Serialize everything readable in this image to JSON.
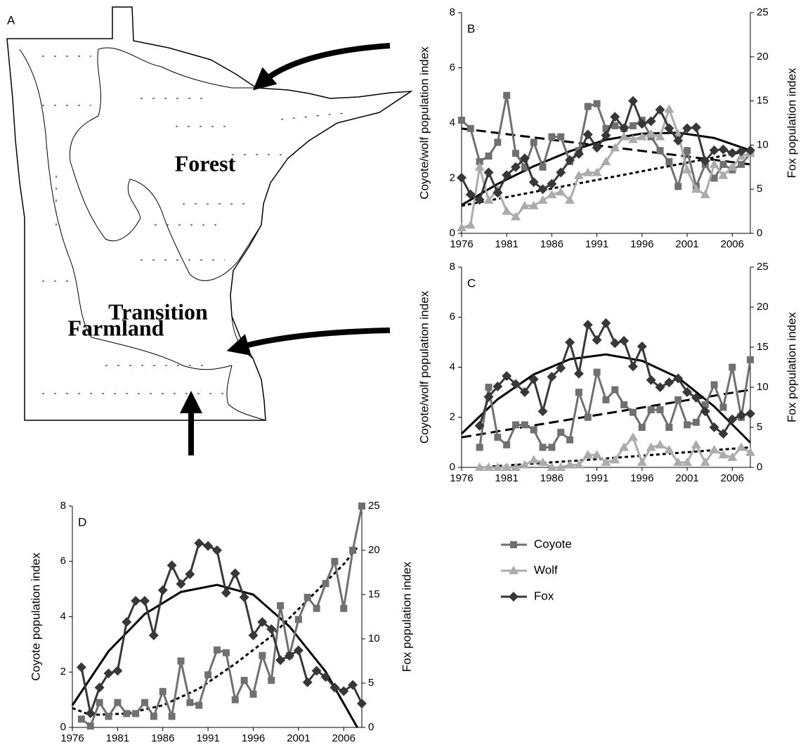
{
  "map": {
    "panel_label": "A",
    "regions": [
      "Forest",
      "Transition",
      "Farmland"
    ]
  },
  "chart_data": [
    {
      "type": "line",
      "panel_label": "B",
      "y_label": "Coyote/wolf population index",
      "y2_label": "Fox population index",
      "x": [
        1976,
        1977,
        1978,
        1979,
        1980,
        1981,
        1982,
        1983,
        1984,
        1985,
        1986,
        1987,
        1988,
        1989,
        1990,
        1991,
        1992,
        1993,
        1994,
        1995,
        1996,
        1997,
        1998,
        1999,
        2000,
        2001,
        2002,
        2003,
        2004,
        2005,
        2006,
        2007,
        2008
      ],
      "xlim": [
        1976,
        2008
      ],
      "xticks": [
        1976,
        1981,
        1986,
        1991,
        1996,
        2001,
        2006
      ],
      "ylim": [
        0,
        8
      ],
      "yticks": [
        0,
        2,
        4,
        6,
        8
      ],
      "y2lim": [
        0,
        25
      ],
      "y2ticks": [
        0,
        5,
        10,
        15,
        20,
        25
      ],
      "series": [
        {
          "name": "Coyote",
          "color": "#707070",
          "marker": "square",
          "values": [
            4.1,
            3.8,
            2.6,
            2.8,
            3.3,
            5.0,
            2.9,
            2.4,
            3.3,
            2.4,
            3.5,
            3.5,
            2.6,
            3.0,
            4.6,
            4.7,
            3.8,
            3.9,
            3.8,
            3.9,
            4.1,
            3.5,
            3.0,
            2.6,
            1.7,
            3.0,
            1.7,
            2.5,
            2.0,
            2.5,
            2.3,
            2.5,
            2.9
          ]
        },
        {
          "name": "Wolf",
          "color": "#ababab",
          "marker": "triangle",
          "values": [
            0.2,
            0.3,
            2.4,
            1.2,
            1.6,
            0.8,
            0.6,
            1.0,
            1.0,
            1.2,
            1.4,
            1.5,
            1.2,
            2.1,
            2.2,
            2.2,
            2.6,
            3.1,
            3.5,
            3.4,
            3.5,
            3.6,
            3.5,
            4.5,
            3.6,
            2.3,
            1.6,
            1.4,
            2.5,
            2.1,
            2.4,
            2.8,
            2.9
          ]
        },
        {
          "name": "Fox",
          "color": "#383838",
          "marker": "diamond",
          "axis": "y2",
          "values": [
            6.3,
            4.4,
            3.8,
            6.9,
            4.6,
            6.6,
            7.5,
            8.5,
            5.8,
            5.0,
            5.6,
            6.9,
            8.3,
            9.0,
            11.2,
            9.7,
            11.1,
            13.2,
            11.9,
            15.0,
            12.4,
            12.7,
            14.0,
            11.9,
            10.5,
            11.9,
            12.0,
            8.2,
            9.4,
            9.5,
            9.1,
            9.3,
            9.4
          ]
        }
      ],
      "trend_lines": [
        {
          "dash": "dashed",
          "x": [
            1976,
            2008
          ],
          "values": [
            3.8,
            2.5
          ]
        },
        {
          "dash": "dotted",
          "x": [
            1976,
            1992,
            2008
          ],
          "values": [
            1.0,
            2.0,
            3.0
          ]
        },
        {
          "dash": "solid",
          "axis": "y2",
          "x": [
            1976,
            1980,
            1984,
            1988,
            1992,
            1996,
            2000,
            2004,
            2008
          ],
          "values": [
            3.2,
            5.6,
            7.6,
            9.3,
            10.6,
            11.3,
            11.4,
            10.8,
            9.4
          ]
        }
      ]
    },
    {
      "type": "line",
      "panel_label": "C",
      "y_label": "Coyote/wolf population index",
      "y2_label": "Fox population index",
      "x": [
        1978,
        1979,
        1980,
        1981,
        1982,
        1983,
        1984,
        1985,
        1986,
        1987,
        1988,
        1989,
        1990,
        1991,
        1992,
        1993,
        1994,
        1995,
        1996,
        1997,
        1998,
        1999,
        2000,
        2001,
        2002,
        2003,
        2004,
        2005,
        2006,
        2007,
        2008
      ],
      "xlim": [
        1976,
        2008
      ],
      "xticks": [
        1976,
        1981,
        1986,
        1991,
        1996,
        2001,
        2006
      ],
      "ylim": [
        0,
        8
      ],
      "yticks": [
        0,
        2,
        4,
        6,
        8
      ],
      "y2lim": [
        0,
        25
      ],
      "y2ticks": [
        0,
        5,
        10,
        15,
        20,
        25
      ],
      "series": [
        {
          "name": "Coyote",
          "color": "#707070",
          "marker": "square",
          "values": [
            0.8,
            3.2,
            1.2,
            0.9,
            1.7,
            1.7,
            1.5,
            0.8,
            0.8,
            1.4,
            1.1,
            3.0,
            2.0,
            3.8,
            2.7,
            3.1,
            2.5,
            2.2,
            1.6,
            2.3,
            2.3,
            1.6,
            2.7,
            1.7,
            1.8,
            2.5,
            3.3,
            2.4,
            4.0,
            2.0,
            4.3
          ]
        },
        {
          "name": "Wolf",
          "color": "#ababab",
          "marker": "triangle",
          "values": [
            0,
            0,
            0,
            0,
            0,
            0.1,
            0.3,
            0.2,
            0,
            0,
            0.1,
            0.1,
            0.5,
            0.5,
            0.2,
            0.3,
            0.8,
            1.2,
            0.2,
            0.8,
            0.9,
            0.7,
            0.2,
            0.2,
            0.9,
            0.2,
            0.7,
            0.5,
            0.4,
            0.8,
            0.6
          ]
        },
        {
          "name": "Fox",
          "color": "#383838",
          "marker": "diamond",
          "axis": "y2",
          "values": [
            5.2,
            8.8,
            10.1,
            11.4,
            10.4,
            9.4,
            11.0,
            7.0,
            11.3,
            12.4,
            15.6,
            11.7,
            17.8,
            15.9,
            18.0,
            15.5,
            15.8,
            12.6,
            15.1,
            10.9,
            10.0,
            10.6,
            11.1,
            9.4,
            8.7,
            7.0,
            5.0,
            4.2,
            6.0,
            6.5,
            6.7
          ]
        }
      ],
      "trend_lines": [
        {
          "dash": "dashed",
          "x": [
            1976,
            2008
          ],
          "values": [
            1.2,
            3.1
          ]
        },
        {
          "dash": "dotted",
          "x": [
            1978,
            1990,
            2008
          ],
          "values": [
            0,
            0.3,
            0.8
          ]
        },
        {
          "dash": "solid",
          "axis": "y2",
          "x": [
            1976,
            1980,
            1984,
            1988,
            1992,
            1996,
            2000,
            2004,
            2008
          ],
          "values": [
            4.2,
            8.5,
            11.6,
            13.5,
            14.1,
            13.3,
            11.2,
            7.6,
            3.1
          ]
        }
      ]
    },
    {
      "type": "line",
      "panel_label": "D",
      "y_label": "Coyote population index",
      "y2_label": "Fox population index",
      "x": [
        1977,
        1978,
        1979,
        1980,
        1981,
        1982,
        1983,
        1984,
        1985,
        1986,
        1987,
        1988,
        1989,
        1990,
        1991,
        1992,
        1993,
        1994,
        1995,
        1996,
        1997,
        1998,
        1999,
        2000,
        2001,
        2002,
        2003,
        2004,
        2005,
        2006,
        2007,
        2008
      ],
      "xlim": [
        1976,
        2008
      ],
      "xticks": [
        1976,
        1981,
        1986,
        1991,
        1996,
        2001,
        2006
      ],
      "ylim": [
        0,
        8
      ],
      "yticks": [
        0,
        2,
        4,
        6,
        8
      ],
      "y2lim": [
        0,
        25
      ],
      "y2ticks": [
        0,
        5,
        10,
        15,
        20,
        25
      ],
      "series": [
        {
          "name": "Coyote",
          "color": "#707070",
          "marker": "square",
          "values": [
            0.3,
            0.05,
            0.9,
            0.4,
            0.9,
            0.5,
            0.5,
            0.9,
            0.4,
            1.3,
            0.4,
            2.4,
            0.9,
            0.8,
            1.9,
            2.8,
            2.7,
            1.0,
            1.7,
            1.2,
            2.6,
            1.7,
            4.4,
            2.6,
            3.9,
            4.7,
            4.3,
            5.2,
            6.0,
            4.3,
            6.4,
            8.0
          ]
        },
        {
          "name": "Fox",
          "color": "#383838",
          "marker": "diamond",
          "axis": "y2",
          "values": [
            6.8,
            1.6,
            4.5,
            6.1,
            6.4,
            11.9,
            14.3,
            14.3,
            10.4,
            15.5,
            18.3,
            16.2,
            17.3,
            20.8,
            20.5,
            20.0,
            15.2,
            17.4,
            14.7,
            10.4,
            11.9,
            11.1,
            7.6,
            8.1,
            8.7,
            5.1,
            6.4,
            5.7,
            4.5,
            4.1,
            4.8,
            2.7
          ]
        }
      ],
      "trend_lines": [
        {
          "dash": "dotted",
          "x": [
            1976,
            1978,
            1982,
            1986,
            1990,
            1994,
            1998,
            2002,
            2006,
            2007.5
          ],
          "values": [
            0.7,
            0.45,
            0.5,
            0.8,
            1.4,
            2.3,
            3.3,
            4.6,
            5.9,
            6.5
          ]
        },
        {
          "dash": "solid",
          "axis": "y2",
          "x": [
            1976,
            1980,
            1984,
            1988,
            1992,
            1996,
            2000,
            2004,
            2007.5
          ],
          "values": [
            2.5,
            8.6,
            12.8,
            15.3,
            16.1,
            15.0,
            11.4,
            6.3,
            0
          ]
        }
      ]
    }
  ]
}
